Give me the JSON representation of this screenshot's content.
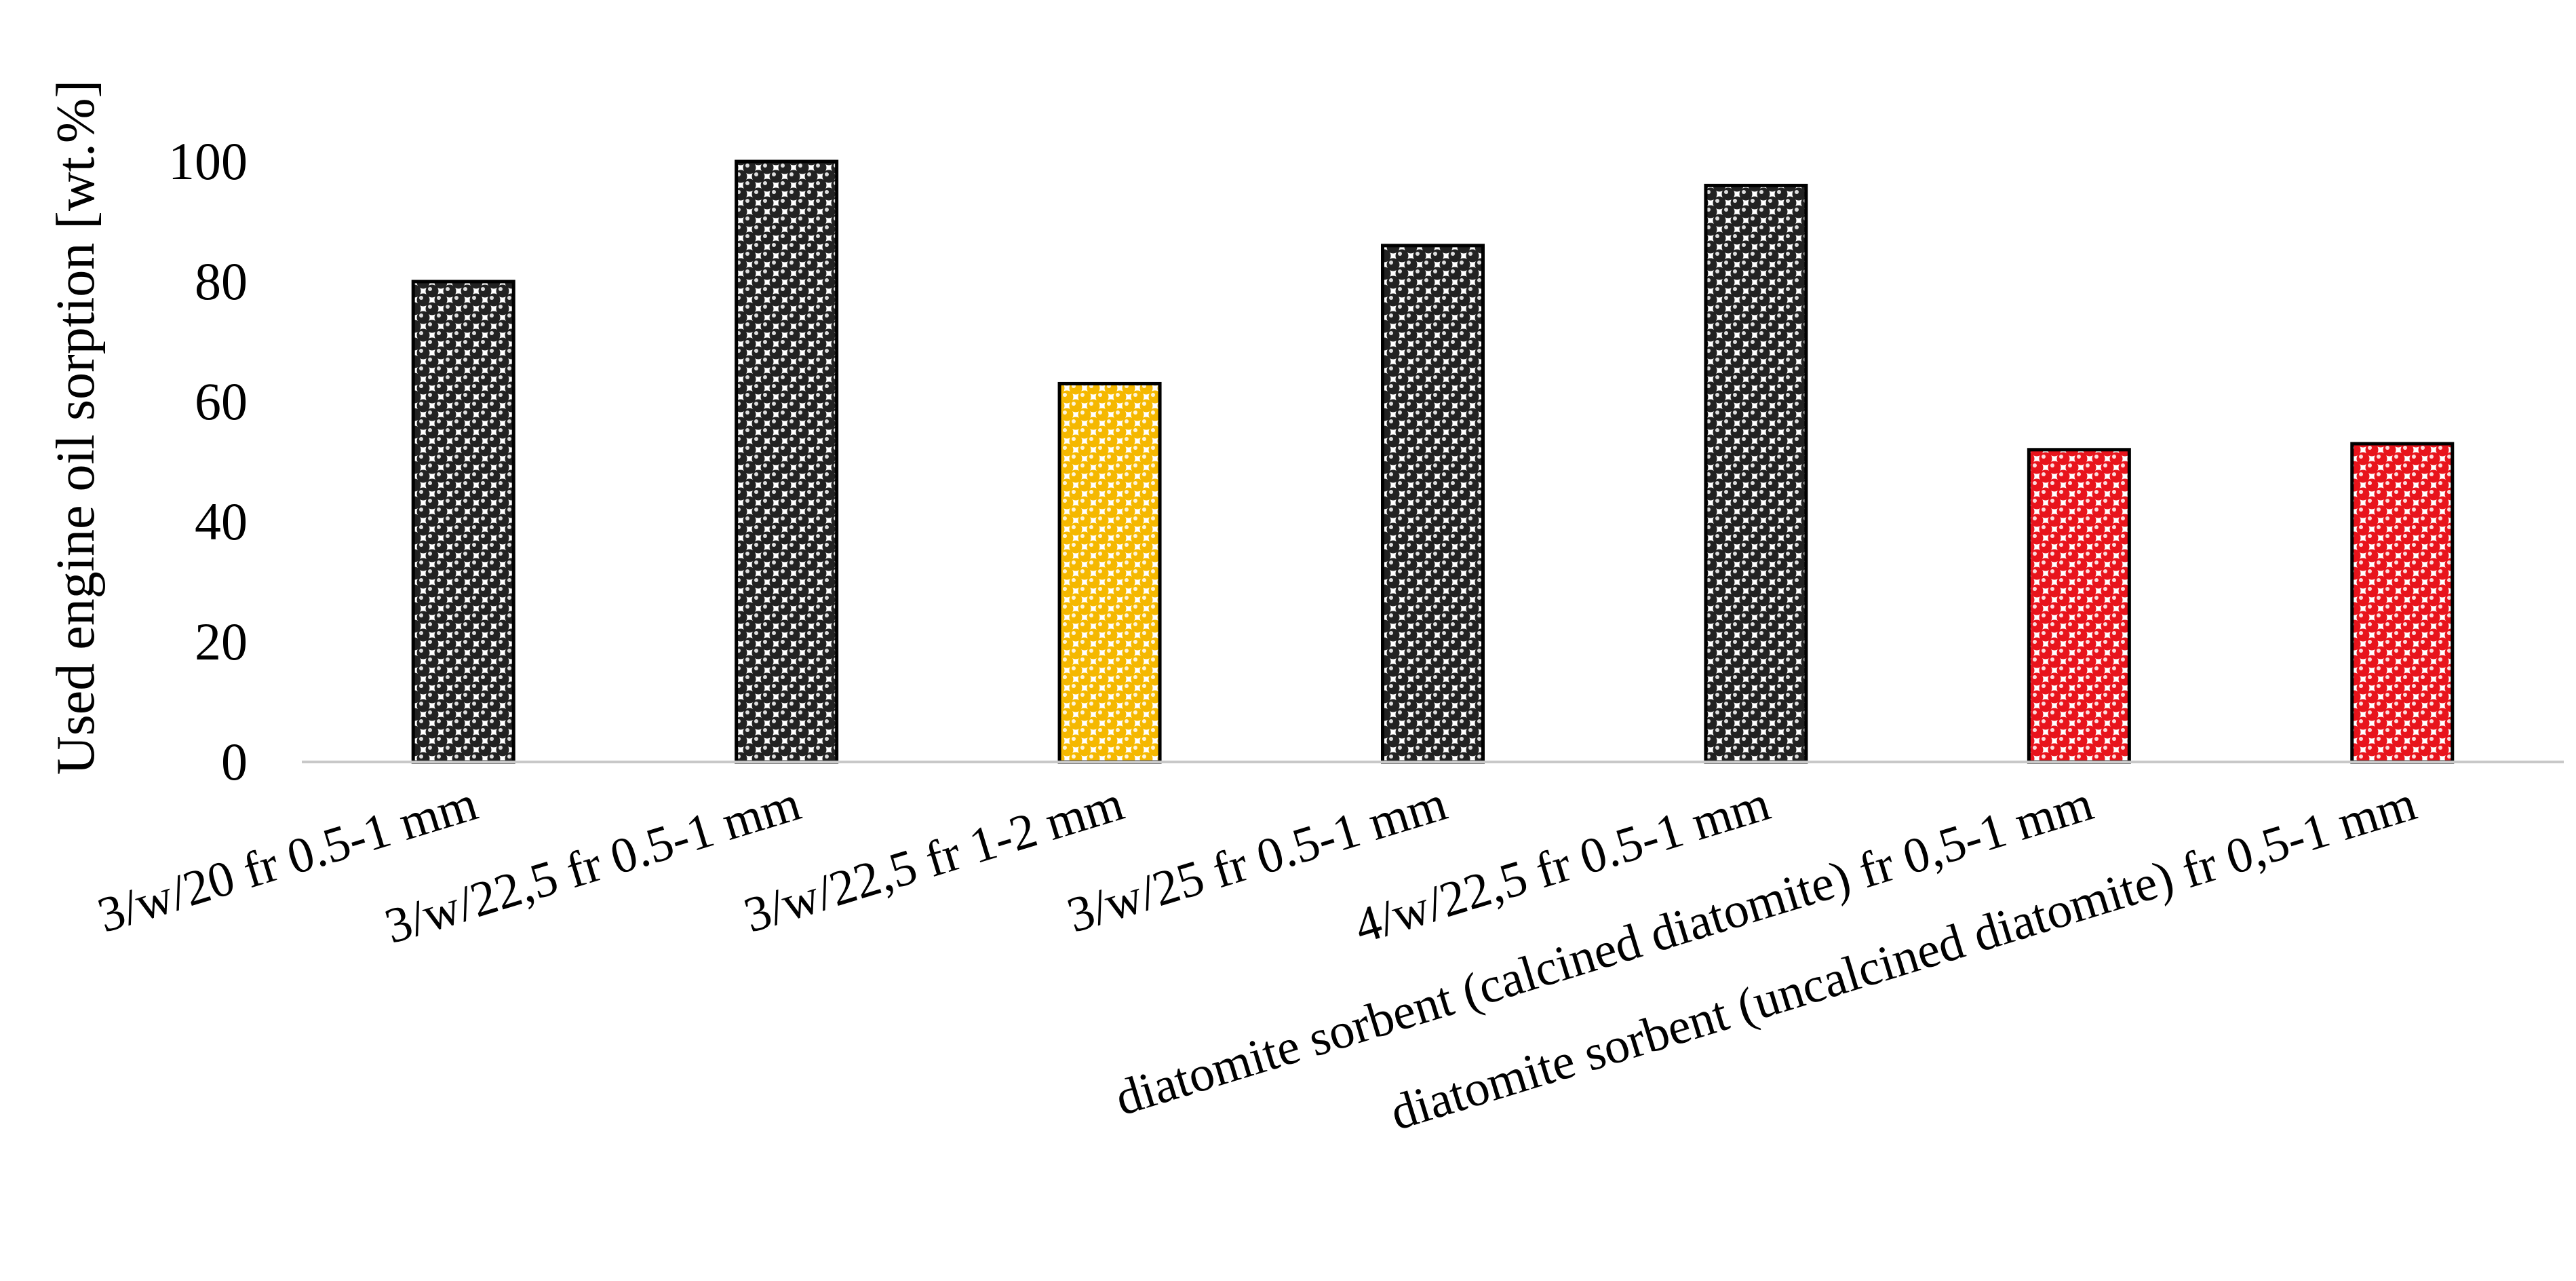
{
  "chart_data": {
    "type": "bar",
    "title": "",
    "xlabel": "",
    "ylabel": "Used engine oil sorption [wt.%]",
    "ylim": [
      0,
      100
    ],
    "yticks": [
      0,
      20,
      40,
      60,
      80,
      100
    ],
    "grid": false,
    "legend": "none",
    "categories": [
      "3/w/20 fr 0.5-1 mm",
      "3/w/22,5 fr 0.5-1 mm",
      "3/w/22,5 fr 1-2 mm",
      "3/w/25 fr 0.5-1 mm",
      "4/w/22,5 fr 0.5-1 mm",
      "diatomite sorbent (calcined diatomite) fr 0,5-1 mm",
      "diatomite sorbent (uncalcined diatomite) fr 0,5-1 mm"
    ],
    "values": [
      80,
      100,
      63,
      86,
      96,
      52,
      53
    ],
    "bar_colors": [
      "#222222",
      "#222222",
      "#f5b800",
      "#222222",
      "#222222",
      "#e8141c",
      "#e8141c"
    ]
  }
}
